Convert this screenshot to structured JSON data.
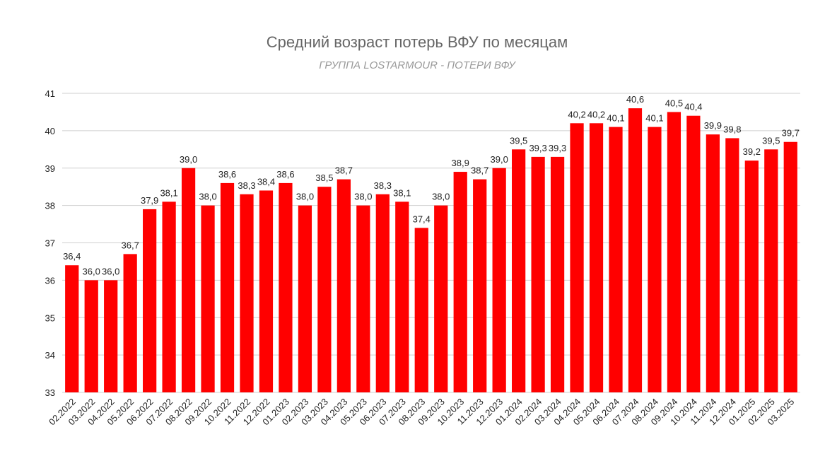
{
  "chart_data": {
    "type": "bar",
    "title": "Средний возраст потерь ВФУ по месяцам",
    "subtitle": "ГРУППА LOSTARMOUR - ПОТЕРИ ВФУ",
    "categories": [
      "02.2022",
      "03.2022",
      "04.2022",
      "05.2022",
      "06.2022",
      "07.2022",
      "08.2022",
      "09.2022",
      "10.2022",
      "11.2022",
      "12.2022",
      "01.2023",
      "02.2023",
      "03.2023",
      "04.2023",
      "05.2023",
      "06.2023",
      "07.2023",
      "08.2023",
      "09.2023",
      "10.2023",
      "11.2023",
      "12.2023",
      "01.2024",
      "02.2024",
      "03.2024",
      "04.2024",
      "05.2024",
      "06.2024",
      "07.2024",
      "08.2024",
      "09.2024",
      "10.2024",
      "11.2024",
      "12.2024",
      "01.2025",
      "02.2025",
      "03.2025"
    ],
    "values": [
      36.4,
      36.0,
      36.0,
      36.7,
      37.9,
      38.1,
      39.0,
      38.0,
      38.6,
      38.3,
      38.4,
      38.6,
      38.0,
      38.5,
      38.7,
      38.0,
      38.3,
      38.1,
      37.4,
      38.0,
      38.9,
      38.7,
      39.0,
      39.5,
      39.3,
      39.3,
      40.2,
      40.2,
      40.1,
      40.6,
      40.1,
      40.5,
      40.4,
      39.9,
      39.8,
      39.2,
      39.5,
      39.7
    ],
    "value_labels": [
      "36,4",
      "36,0",
      "36,0",
      "36,7",
      "37,9",
      "38,1",
      "39,0",
      "38,0",
      "38,6",
      "38,3",
      "38,4",
      "38,6",
      "38,0",
      "38,5",
      "38,7",
      "38,0",
      "38,3",
      "38,1",
      "37,4",
      "38,0",
      "38,9",
      "38,7",
      "39,0",
      "39,5",
      "39,3",
      "39,3",
      "40,2",
      "40,2",
      "40,1",
      "40,6",
      "40,1",
      "40,5",
      "40,4",
      "39,9",
      "39,8",
      "39,2",
      "39,5",
      "39,7"
    ],
    "color": "#ff0000",
    "ylim": [
      33,
      41
    ],
    "yticks": [
      33,
      34,
      35,
      36,
      37,
      38,
      39,
      40,
      41
    ],
    "grid": true
  }
}
